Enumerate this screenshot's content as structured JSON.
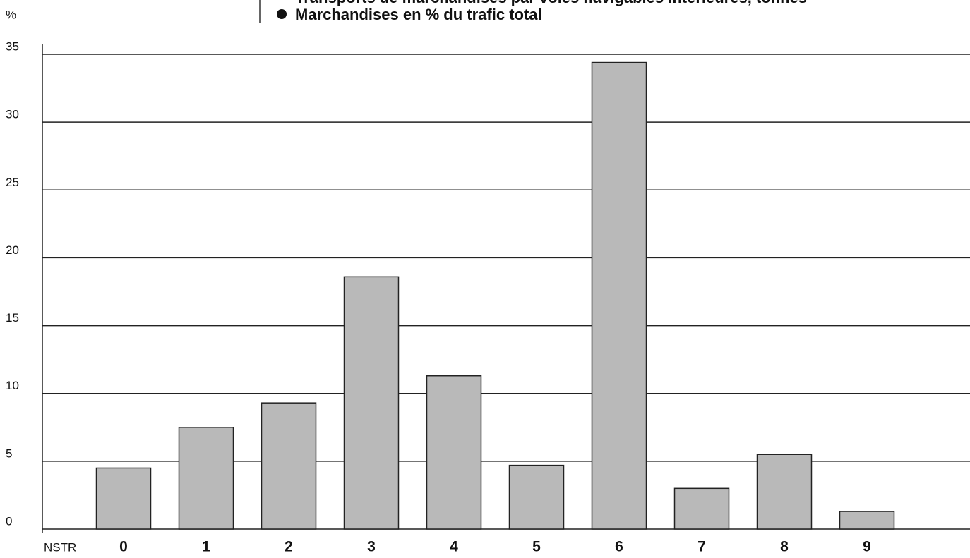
{
  "chart_data": {
    "type": "bar",
    "title": "Transports de marchandises par voies navigables intérieures, tonnes",
    "subtitle": "Marchandises en % du trafic total",
    "y_label": "%",
    "x_label": "NSTR",
    "categories": [
      "0",
      "1",
      "2",
      "3",
      "4",
      "5",
      "6",
      "7",
      "8",
      "9"
    ],
    "values": [
      4.5,
      7.5,
      9.3,
      18.6,
      11.3,
      4.7,
      34.4,
      3.0,
      5.5,
      1.3
    ],
    "color": "#b9b9b9",
    "ylim": [
      0,
      35
    ],
    "yticks": [
      0,
      5,
      10,
      15,
      20,
      25,
      30,
      35
    ],
    "grid": true
  }
}
